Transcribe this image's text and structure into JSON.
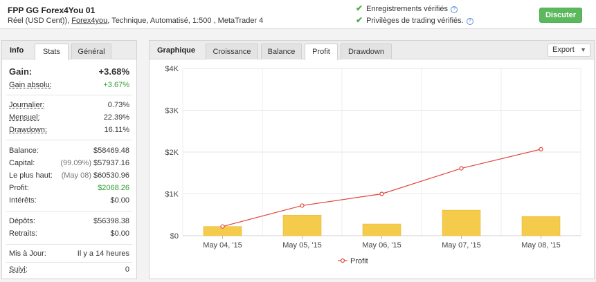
{
  "header": {
    "title": "FPP GG Forex4You 01",
    "sub_prefix": "Réel (USD Cent)), ",
    "sub_link": "Forex4you",
    "sub_suffix": ", Technique, Automatisé, 1:500 , MetaTrader 4",
    "verif1": "Enregistrements vérifiés",
    "verif2": "Privilèges de trading vérifiés.",
    "discuss_label": "Discuter",
    "help_glyph": "?"
  },
  "left": {
    "tab_label": "Info",
    "tabs": [
      "Stats",
      "Général"
    ],
    "gain_label": "Gain:",
    "gain_value": "+3.68%",
    "abs_gain_label": "Gain absolu:",
    "abs_gain_value": "+3.67%",
    "daily_label": "Journalier:",
    "daily_value": "0.73%",
    "monthly_label": "Mensuel:",
    "monthly_value": "22.39%",
    "drawdown_label": "Drawdown:",
    "drawdown_value": "16.11%",
    "balance_label": "Balance:",
    "balance_value": "$58469.48",
    "equity_label": "Capital:",
    "equity_pre": "(99.09%)",
    "equity_value": "$57937.16",
    "highest_label": "Le plus haut:",
    "highest_pre": "(May 08)",
    "highest_value": "$60530.96",
    "profit_label": "Profit:",
    "profit_value": "$2068.26",
    "interest_label": "Intérêts:",
    "interest_value": "$0.00",
    "deposits_label": "Dépôts:",
    "deposits_value": "$56398.38",
    "withdrawals_label": "Retraits:",
    "withdrawals_value": "$0.00",
    "updated_label": "Mis à Jour:",
    "updated_value": "Il y a 14 heures",
    "follow_label": "Suivi:",
    "follow_value": "0"
  },
  "right": {
    "tab_label": "Graphique",
    "tabs": [
      "Croissance",
      "Balance",
      "Profit",
      "Drawdown"
    ],
    "active_tab": "Profit",
    "export_label": "Export",
    "export_arrow": "▼"
  },
  "chart_data": {
    "type": "bar",
    "categories": [
      "May 04, '15",
      "May 05, '15",
      "May 06, '15",
      "May 07, '15",
      "May 08, '15"
    ],
    "series": [
      {
        "name": "",
        "type": "bar",
        "color": "#f5cb4b",
        "values": [
          220,
          490,
          280,
          610,
          460
        ]
      },
      {
        "name": "Profit",
        "type": "line",
        "color": "#e0463c",
        "values": [
          220,
          720,
          1000,
          1610,
          2068
        ]
      }
    ],
    "ylim": [
      0,
      4000
    ],
    "yticks": [
      0,
      1000,
      2000,
      3000,
      4000
    ],
    "ytick_labels": [
      "$0",
      "$1K",
      "$2K",
      "$3K",
      "$4K"
    ],
    "grid": true,
    "legend": "bottom"
  }
}
